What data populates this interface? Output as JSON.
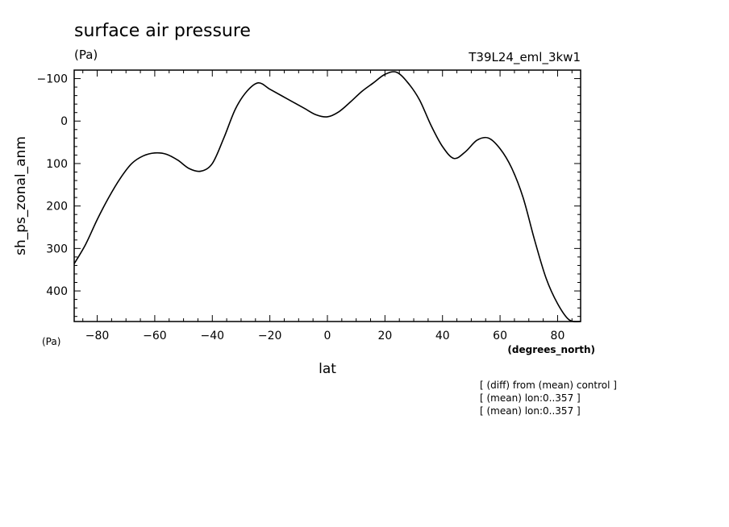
{
  "chart_data": {
    "type": "line",
    "title": "surface air pressure",
    "y_unit": "(Pa)",
    "x_unit_left": "(Pa)",
    "experiment": "T39L24_eml_3kw1",
    "xlabel": "lat",
    "xunits": "(degrees_north)",
    "ylabel": "sh_ps_zonal_anm",
    "xlim": [
      -88,
      88
    ],
    "ylim": [
      -120,
      472
    ],
    "y_inverted": true,
    "x_ticks": [
      -80,
      -60,
      -40,
      -20,
      0,
      20,
      40,
      60,
      80
    ],
    "x_tick_labels": [
      "−80",
      "−60",
      "−40",
      "−20",
      "0",
      "20",
      "40",
      "60",
      "80"
    ],
    "y_ticks": [
      -100,
      0,
      100,
      200,
      300,
      400
    ],
    "y_tick_labels": [
      "−100",
      "0",
      "100",
      "200",
      "300",
      "400"
    ],
    "grid": false,
    "series": [
      {
        "x": [
          -88,
          -84,
          -80,
          -76,
          -72,
          -68,
          -64,
          -60,
          -56,
          -52,
          -48,
          -44,
          -40,
          -36,
          -32,
          -28,
          -24,
          -20,
          -16,
          -12,
          -8,
          -4,
          0,
          4,
          8,
          12,
          16,
          20,
          24,
          28,
          32,
          36,
          40,
          44,
          48,
          52,
          56,
          60,
          64,
          68,
          72,
          76,
          80,
          84,
          88
        ],
        "y": [
          336,
          290,
          232,
          180,
          135,
          100,
          82,
          75,
          78,
          92,
          112,
          118,
          100,
          40,
          -28,
          -70,
          -90,
          -75,
          -60,
          -45,
          -30,
          -15,
          -10,
          -22,
          -45,
          -70,
          -90,
          -110,
          -115,
          -90,
          -50,
          10,
          60,
          88,
          72,
          45,
          40,
          65,
          110,
          180,
          280,
          370,
          430,
          468,
          472
        ]
      }
    ],
    "notes": [
      "[ (diff) from (mean) control ]",
      "[ (mean) lon:0..357 ]",
      "[ (mean) lon:0..357 ]"
    ]
  }
}
